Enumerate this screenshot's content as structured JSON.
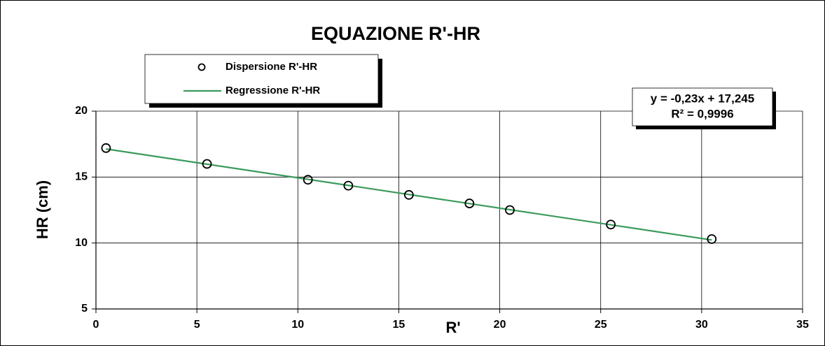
{
  "chart_data": {
    "type": "scatter",
    "title": "EQUAZIONE R'-HR",
    "x_label": "R'",
    "y_label": "HR (cm)",
    "series": [
      {
        "name": "Dispersione R'-HR",
        "color": "#000000",
        "style": "markers",
        "x": [
          0.5,
          5.5,
          10.5,
          12.5,
          15.5,
          18.5,
          20.5,
          25.5,
          30.5
        ],
        "values": [
          17.2,
          16.0,
          14.8,
          14.35,
          13.65,
          13.0,
          12.5,
          11.4,
          10.3
        ]
      },
      {
        "name": "Regressione R'-HR",
        "color": "#3a9a5c",
        "style": "line",
        "x": [
          0.5,
          30.5
        ],
        "values": [
          17.13,
          10.23
        ]
      }
    ],
    "annotations": [
      "y = -0,23x + 17,245",
      "R² = 0,9996"
    ],
    "xlim": [
      0,
      35
    ],
    "xticks": [
      0,
      5,
      10,
      15,
      20,
      25,
      30,
      35
    ],
    "ylim": [
      5,
      20
    ],
    "yticks": [
      5,
      10,
      15,
      20
    ],
    "grid": true
  }
}
